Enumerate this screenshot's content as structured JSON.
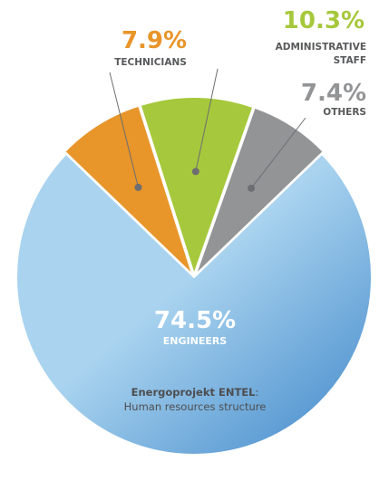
{
  "chart_data": {
    "type": "pie",
    "slices": [
      {
        "label": "ENGINEERS",
        "value": 74.5,
        "value_label": "74.5%",
        "color": "#a9d3ef",
        "color_dark": "#3f87c9"
      },
      {
        "label": "TECHNICIANS",
        "value": 7.9,
        "value_label": "7.9%",
        "color": "#e8952a"
      },
      {
        "label": "ADMINISTRATIVE STAFF",
        "label_lines": [
          "ADMINISTRATIVE",
          "STAFF"
        ],
        "value": 10.3,
        "value_label": "10.3%",
        "color": "#a6c83c"
      },
      {
        "label": "OTHERS",
        "value": 7.4,
        "value_label": "7.4%",
        "color": "#939496"
      }
    ],
    "caption": {
      "bold": "Energoprojekt ENTEL",
      "separator": ":",
      "text": "Human resources structure"
    },
    "colors": {
      "pct_technicians": "#e8952a",
      "pct_administrative": "#a6c83c",
      "pct_others": "#939496",
      "label_text": "#58595b",
      "caption_text": "#4d4d4f"
    }
  }
}
